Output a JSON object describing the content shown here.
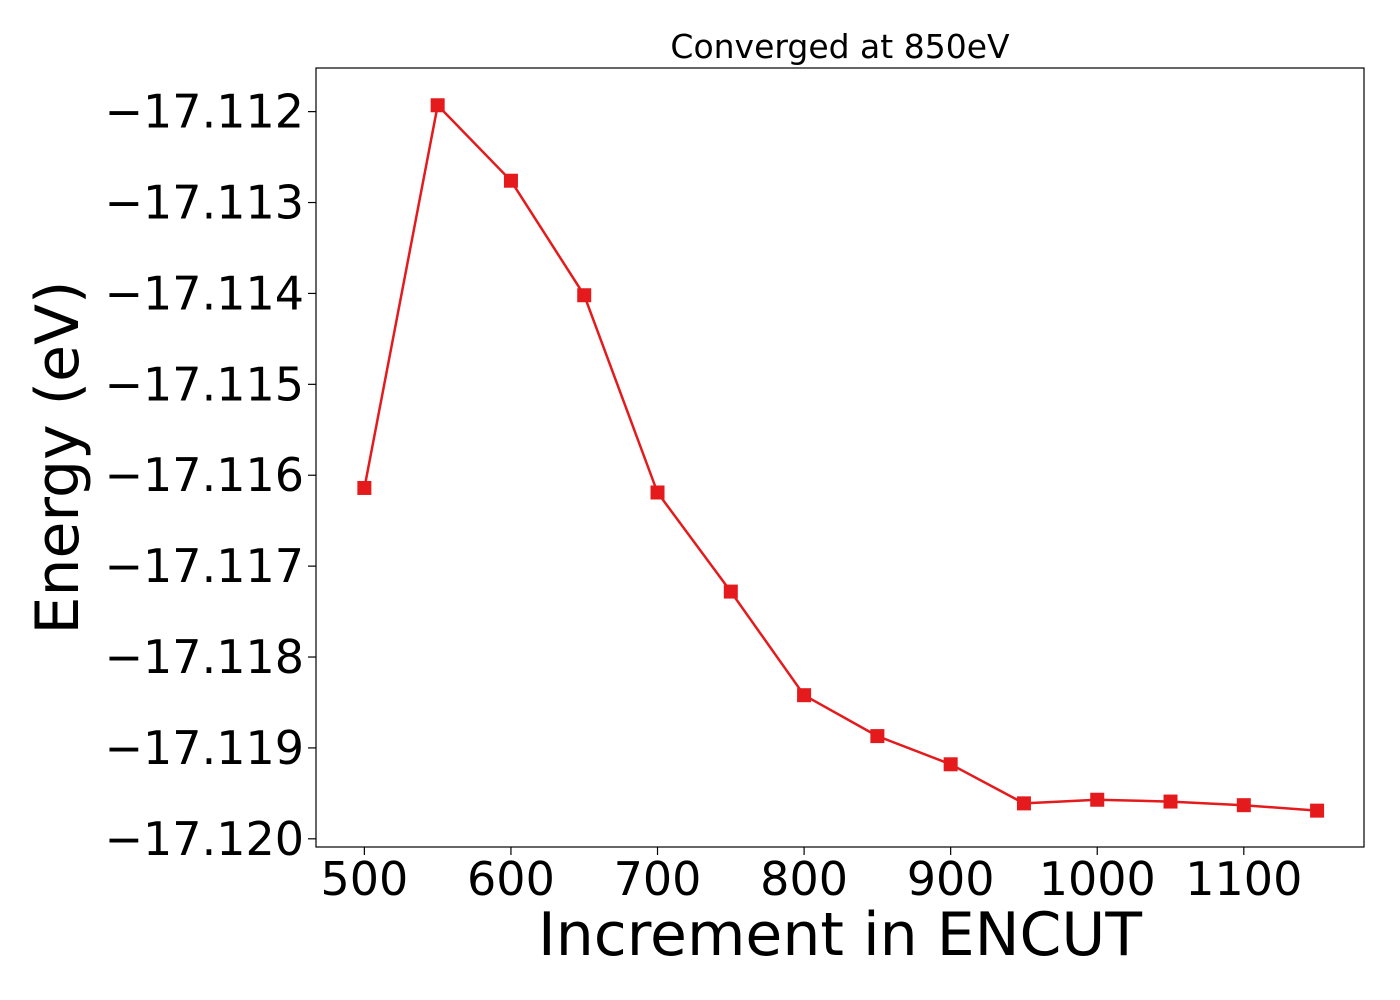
{
  "chart_data": {
    "type": "line",
    "title": "Converged at 850eV",
    "xlabel": "Increment in ENCUT",
    "ylabel": "Energy (eV)",
    "xlim": [
      467,
      1182
    ],
    "ylim": [
      -17.12009,
      -17.11152
    ],
    "xticks": [
      500,
      600,
      700,
      800,
      900,
      1000,
      1100
    ],
    "yticks": [
      -17.112,
      -17.113,
      -17.114,
      -17.115,
      -17.116,
      -17.117,
      -17.118,
      -17.119,
      -17.12
    ],
    "ytick_labels": [
      "−17.112",
      "−17.113",
      "−17.114",
      "−17.115",
      "−17.116",
      "−17.117",
      "−17.118",
      "−17.119",
      "−17.120"
    ],
    "grid": false,
    "series": [
      {
        "color": "#e41a1c",
        "marker": "square",
        "x": [
          500,
          550,
          600,
          650,
          700,
          750,
          800,
          850,
          900,
          950,
          1000,
          1050,
          1100,
          1150
        ],
        "y": [
          -17.11614,
          -17.11193,
          -17.11276,
          -17.11402,
          -17.11619,
          -17.11728,
          -17.11842,
          -17.11887,
          -17.11918,
          -17.11961,
          -17.11957,
          -17.11959,
          -17.11963,
          -17.11969
        ]
      }
    ]
  }
}
